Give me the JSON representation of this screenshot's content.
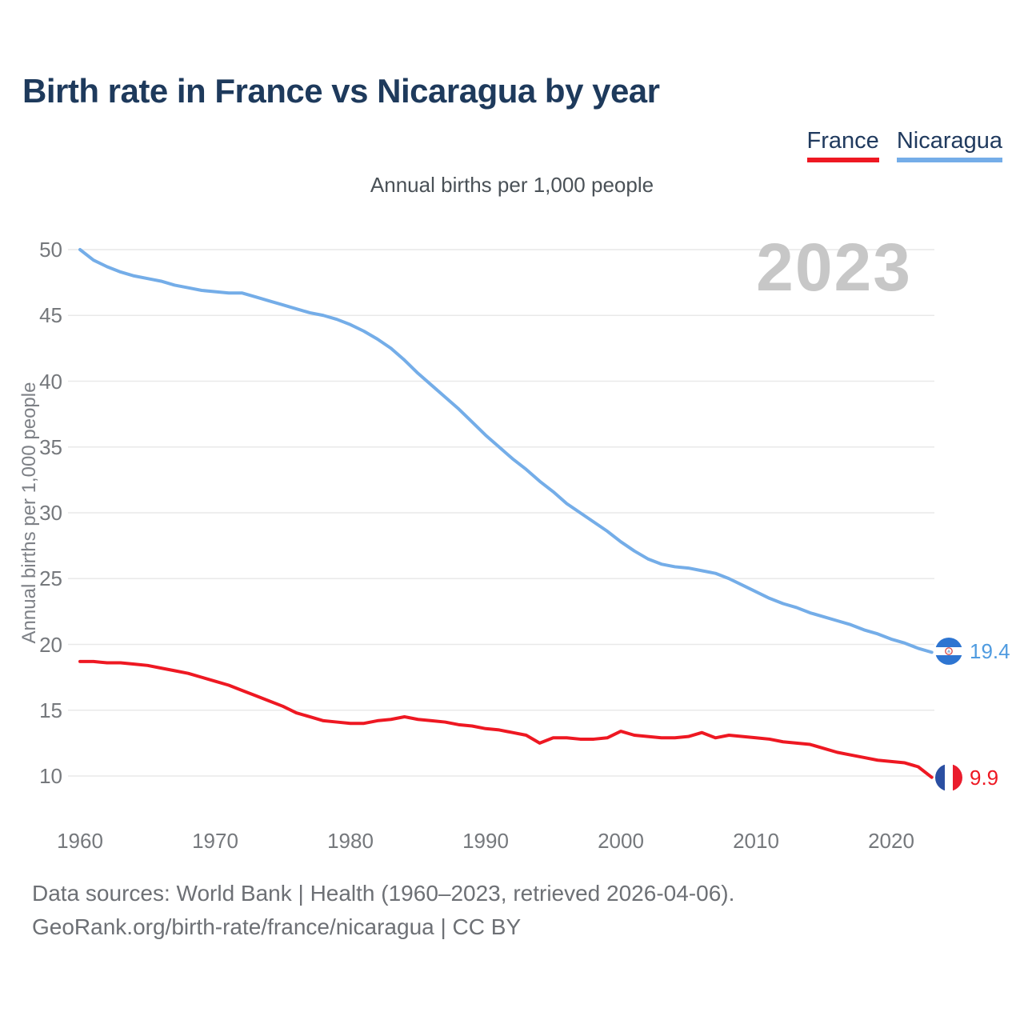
{
  "title": "Birth rate in France vs Nicaragua by year",
  "subtitle": "Annual births per 1,000 people",
  "watermark": "2023",
  "legend": [
    {
      "label": "France",
      "color": "#ee1822"
    },
    {
      "label": "Nicaragua",
      "color": "#74ade8"
    }
  ],
  "y_axis_title": "Annual births per 1,000 people",
  "end_labels": [
    {
      "series": "Nicaragua",
      "value": "19.4",
      "flag": "nicaragua-flag"
    },
    {
      "series": "France",
      "value": "9.9",
      "flag": "france-flag"
    }
  ],
  "footer": {
    "line1": "Data sources: World Bank | Health (1960–2023, retrieved 2026-04-06).",
    "line2": "GeoRank.org/birth-rate/france/nicaragua | CC BY"
  },
  "chart_data": {
    "type": "line",
    "title": "Birth rate in France vs Nicaragua by year",
    "ylabel": "Annual births per 1,000 people",
    "xlabel": "",
    "xlim": [
      1960,
      2023
    ],
    "ylim": [
      10,
      50
    ],
    "xticks": [
      1960,
      1970,
      1980,
      1990,
      2000,
      2010,
      2020
    ],
    "yticks": [
      50,
      45,
      40,
      35,
      30,
      25,
      20,
      15,
      10
    ],
    "grid": true,
    "legend_position": "top-right",
    "years": [
      1960,
      1961,
      1962,
      1963,
      1964,
      1965,
      1966,
      1967,
      1968,
      1969,
      1970,
      1971,
      1972,
      1973,
      1974,
      1975,
      1976,
      1977,
      1978,
      1979,
      1980,
      1981,
      1982,
      1983,
      1984,
      1985,
      1986,
      1987,
      1988,
      1989,
      1990,
      1991,
      1992,
      1993,
      1994,
      1995,
      1996,
      1997,
      1998,
      1999,
      2000,
      2001,
      2002,
      2003,
      2004,
      2005,
      2006,
      2007,
      2008,
      2009,
      2010,
      2011,
      2012,
      2013,
      2014,
      2015,
      2016,
      2017,
      2018,
      2019,
      2020,
      2021,
      2022,
      2023
    ],
    "series": [
      {
        "name": "France",
        "color": "#ee1822",
        "end_value": 9.9,
        "values": [
          18.7,
          18.7,
          18.6,
          18.6,
          18.5,
          18.4,
          18.2,
          18.0,
          17.8,
          17.5,
          17.2,
          16.9,
          16.5,
          16.1,
          15.7,
          15.3,
          14.8,
          14.5,
          14.2,
          14.1,
          14.0,
          14.0,
          14.2,
          14.3,
          14.5,
          14.3,
          14.2,
          14.1,
          13.9,
          13.8,
          13.6,
          13.5,
          13.3,
          13.1,
          12.5,
          12.9,
          12.9,
          12.8,
          12.8,
          12.9,
          13.4,
          13.1,
          13.0,
          12.9,
          12.9,
          13.0,
          13.3,
          12.9,
          13.1,
          13.0,
          12.9,
          12.8,
          12.6,
          12.5,
          12.4,
          12.1,
          11.8,
          11.6,
          11.4,
          11.2,
          11.1,
          11.0,
          10.7,
          9.9
        ]
      },
      {
        "name": "Nicaragua",
        "color": "#74ade8",
        "end_value": 19.4,
        "values": [
          50.0,
          49.2,
          48.7,
          48.3,
          48.0,
          47.8,
          47.6,
          47.3,
          47.1,
          46.9,
          46.8,
          46.7,
          46.7,
          46.4,
          46.1,
          45.8,
          45.5,
          45.2,
          45.0,
          44.7,
          44.3,
          43.8,
          43.2,
          42.5,
          41.6,
          40.6,
          39.7,
          38.8,
          37.9,
          36.9,
          35.9,
          35.0,
          34.1,
          33.3,
          32.4,
          31.6,
          30.7,
          30.0,
          29.3,
          28.6,
          27.8,
          27.1,
          26.5,
          26.1,
          25.9,
          25.8,
          25.6,
          25.4,
          25.0,
          24.5,
          24.0,
          23.5,
          23.1,
          22.8,
          22.4,
          22.1,
          21.8,
          21.5,
          21.1,
          20.8,
          20.4,
          20.1,
          19.7,
          19.4
        ]
      }
    ]
  }
}
